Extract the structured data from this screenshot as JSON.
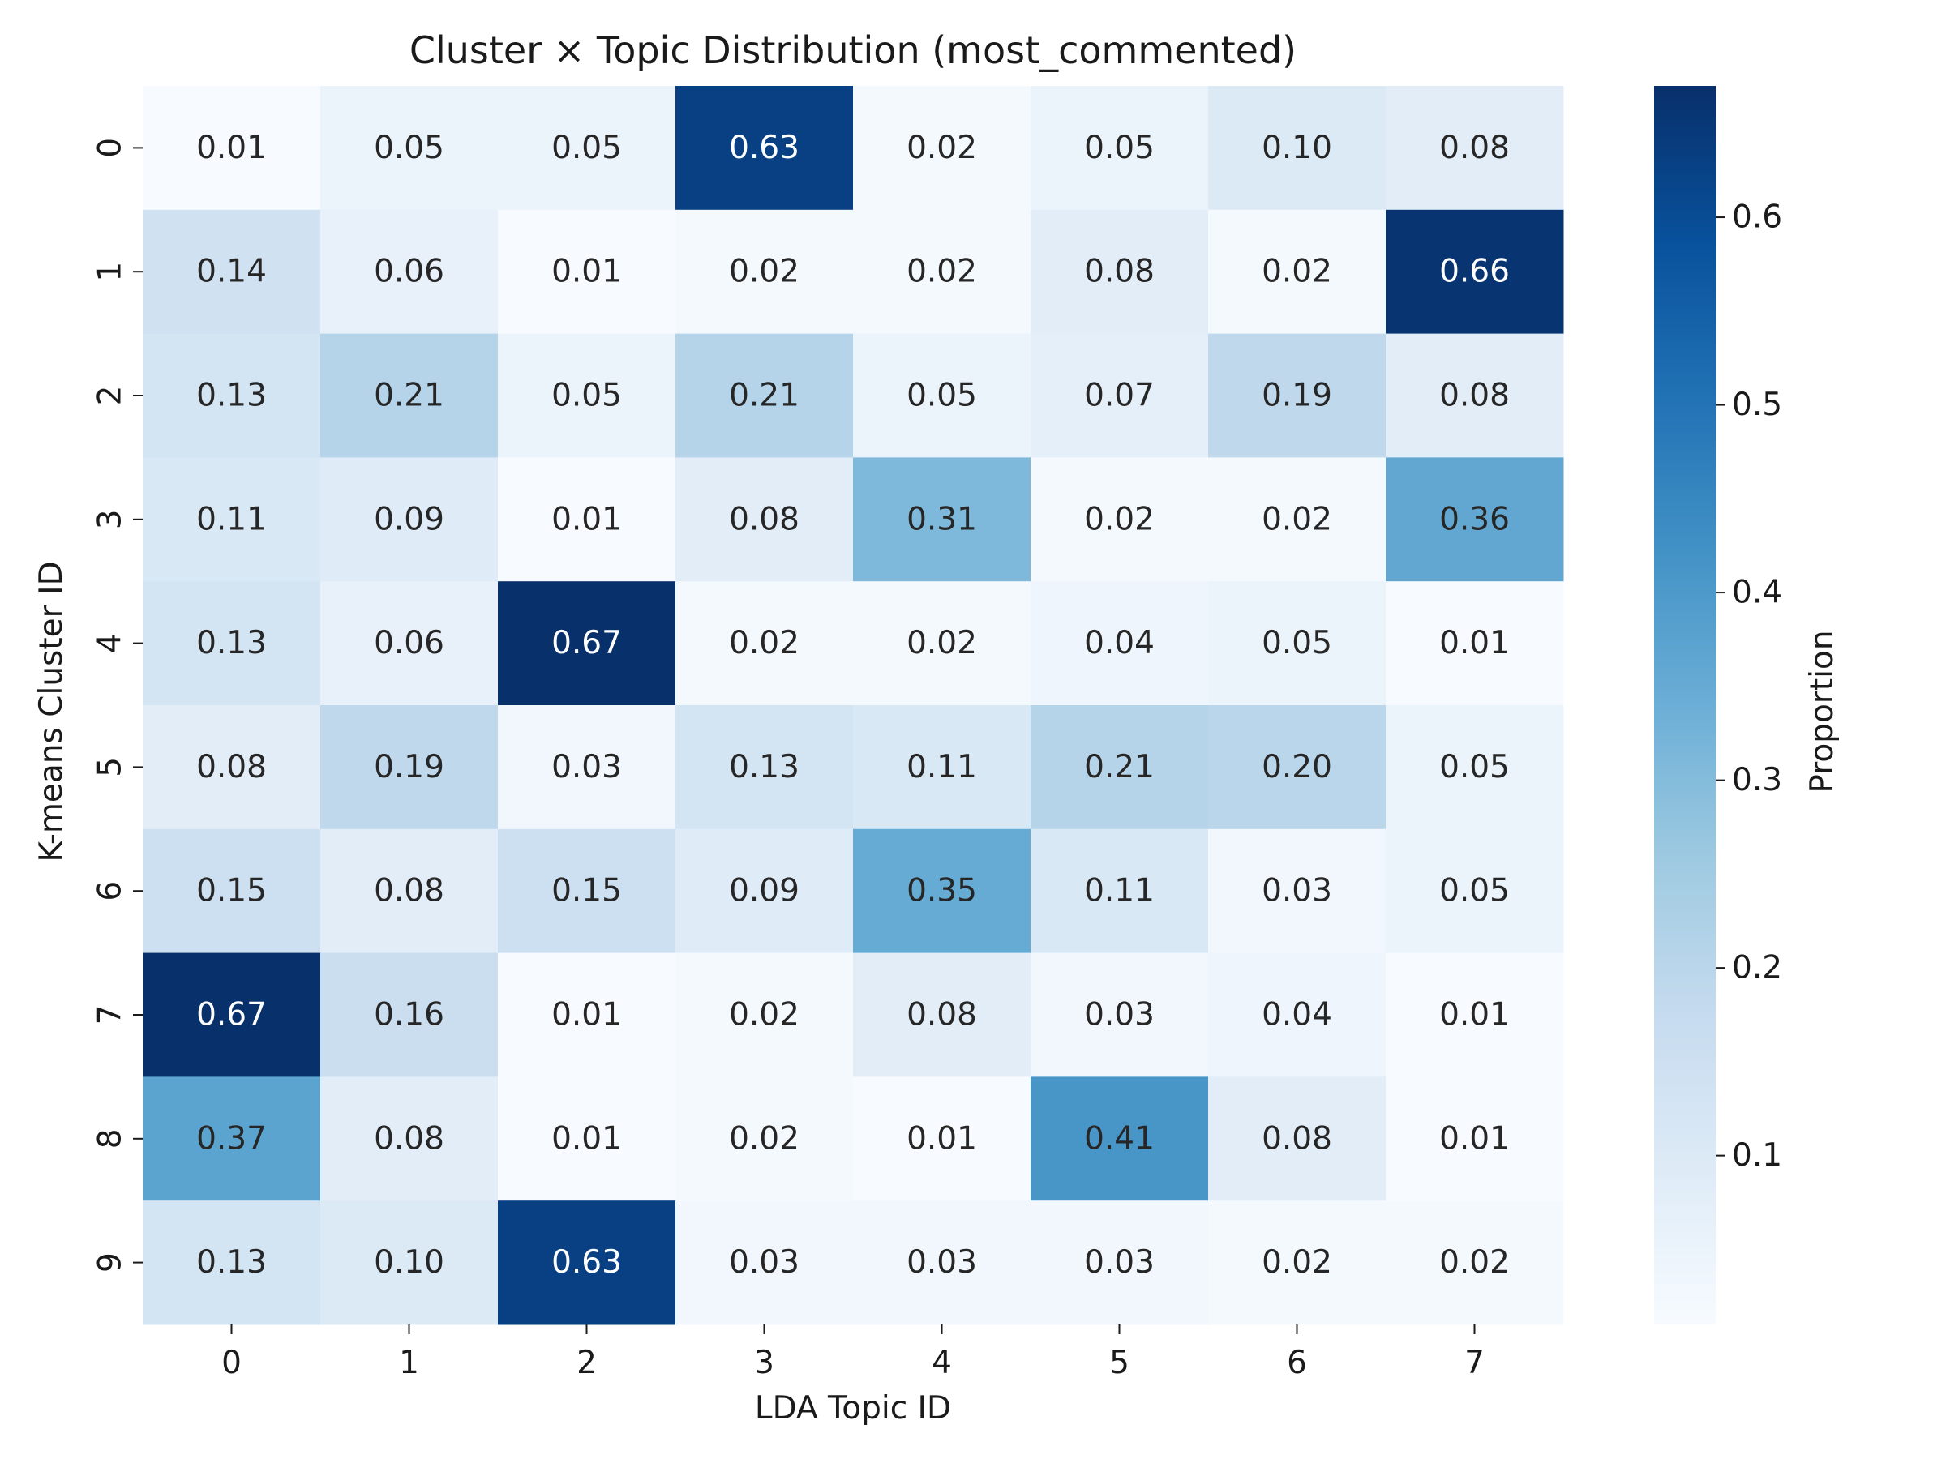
{
  "chart_data": {
    "type": "heatmap",
    "title": "Cluster × Topic Distribution  (most_commented)",
    "xlabel": "LDA Topic ID",
    "ylabel": "K-means Cluster ID",
    "x_categories": [
      "0",
      "1",
      "2",
      "3",
      "4",
      "5",
      "6",
      "7"
    ],
    "y_categories": [
      "0",
      "1",
      "2",
      "3",
      "4",
      "5",
      "6",
      "7",
      "8",
      "9"
    ],
    "values": [
      [
        0.01,
        0.05,
        0.05,
        0.63,
        0.02,
        0.05,
        0.1,
        0.08
      ],
      [
        0.14,
        0.06,
        0.01,
        0.02,
        0.02,
        0.08,
        0.02,
        0.66
      ],
      [
        0.13,
        0.21,
        0.05,
        0.21,
        0.05,
        0.07,
        0.19,
        0.08
      ],
      [
        0.11,
        0.09,
        0.01,
        0.08,
        0.31,
        0.02,
        0.02,
        0.36
      ],
      [
        0.13,
        0.06,
        0.67,
        0.02,
        0.02,
        0.04,
        0.05,
        0.01
      ],
      [
        0.08,
        0.19,
        0.03,
        0.13,
        0.11,
        0.21,
        0.2,
        0.05
      ],
      [
        0.15,
        0.08,
        0.15,
        0.09,
        0.35,
        0.11,
        0.03,
        0.05
      ],
      [
        0.67,
        0.16,
        0.01,
        0.02,
        0.08,
        0.03,
        0.04,
        0.01
      ],
      [
        0.37,
        0.08,
        0.01,
        0.02,
        0.01,
        0.41,
        0.08,
        0.01
      ],
      [
        0.13,
        0.1,
        0.63,
        0.03,
        0.03,
        0.03,
        0.02,
        0.02
      ]
    ],
    "value_format": "2 decimals",
    "colormap": "Blues",
    "color_stops": [
      "#f7fbff",
      "#deebf7",
      "#c6dbef",
      "#9ecae1",
      "#6baed6",
      "#4292c6",
      "#2171b5",
      "#08519c",
      "#08306b"
    ],
    "vmin": 0.01,
    "vmax": 0.67,
    "colorbar": {
      "label": "Proportion",
      "ticks": [
        0.1,
        0.2,
        0.3,
        0.4,
        0.5,
        0.6
      ],
      "tick_labels": [
        "0.1",
        "0.2",
        "0.3",
        "0.4",
        "0.5",
        "0.6"
      ],
      "placement": "right"
    },
    "annotation_colors": {
      "dark": "#262626",
      "light": "#ffffff"
    },
    "grid": false
  }
}
